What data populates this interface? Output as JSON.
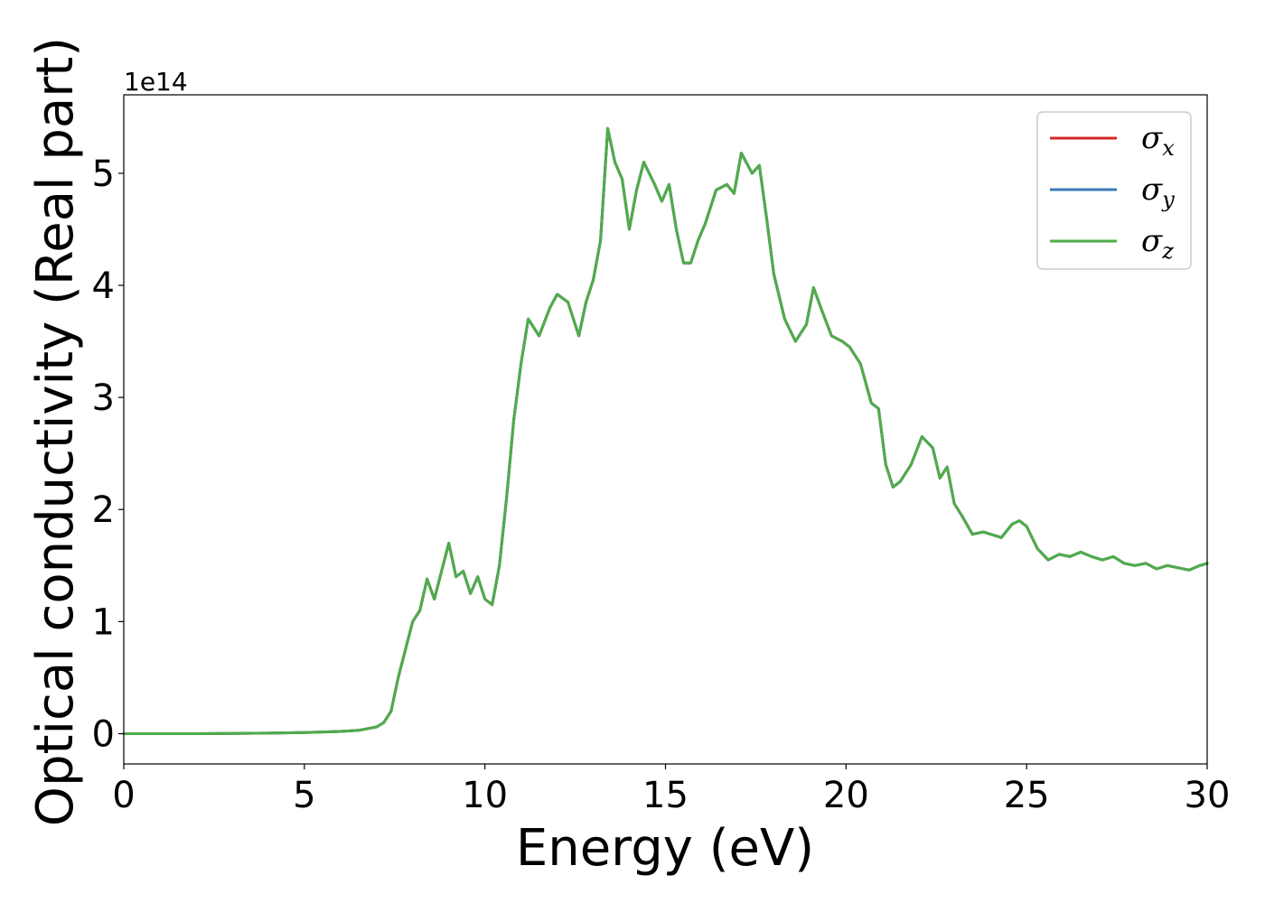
{
  "chart_data": {
    "type": "line",
    "xlabel": "Energy (eV)",
    "ylabel": "Optical conductivity (Real part)",
    "y_offset_label": "1e14",
    "xlim": [
      0,
      30
    ],
    "ylim": [
      -0.27,
      5.7
    ],
    "xticks": [
      "0",
      "5",
      "10",
      "15",
      "20",
      "25",
      "30"
    ],
    "yticks": [
      "0",
      "1",
      "2",
      "3",
      "4",
      "5"
    ],
    "grid": false,
    "legend_position": "top-right",
    "series": [
      {
        "name": "σx",
        "symbol": "σ",
        "subscript": "x",
        "color": "#d62728"
      },
      {
        "name": "σy",
        "symbol": "σ",
        "subscript": "y",
        "color": "#3a7bb6"
      },
      {
        "name": "σz",
        "symbol": "σ",
        "subscript": "z",
        "color": "#4fac4a"
      }
    ],
    "x": [
      0,
      2,
      4,
      5,
      6,
      6.5,
      7,
      7.2,
      7.4,
      7.6,
      7.8,
      8.0,
      8.2,
      8.4,
      8.6,
      8.8,
      9.0,
      9.2,
      9.4,
      9.6,
      9.8,
      10.0,
      10.2,
      10.4,
      10.6,
      10.8,
      11.0,
      11.2,
      11.5,
      11.8,
      12.0,
      12.3,
      12.6,
      12.8,
      13.0,
      13.2,
      13.4,
      13.6,
      13.8,
      14.0,
      14.2,
      14.4,
      14.7,
      14.9,
      15.1,
      15.3,
      15.5,
      15.7,
      15.9,
      16.1,
      16.4,
      16.7,
      16.9,
      17.1,
      17.4,
      17.6,
      17.8,
      18.0,
      18.3,
      18.6,
      18.9,
      19.1,
      19.3,
      19.6,
      19.9,
      20.1,
      20.4,
      20.7,
      20.9,
      21.1,
      21.3,
      21.5,
      21.8,
      22.1,
      22.4,
      22.6,
      22.8,
      23.0,
      23.2,
      23.5,
      23.8,
      24.0,
      24.3,
      24.6,
      24.8,
      25.0,
      25.3,
      25.6,
      25.9,
      26.2,
      26.5,
      26.8,
      27.1,
      27.4,
      27.7,
      28.0,
      28.3,
      28.6,
      28.9,
      29.2,
      29.5,
      29.8,
      30.0
    ],
    "y": [
      0,
      0,
      0.005,
      0.01,
      0.02,
      0.03,
      0.06,
      0.1,
      0.2,
      0.5,
      0.75,
      1.0,
      1.1,
      1.38,
      1.2,
      1.45,
      1.7,
      1.4,
      1.45,
      1.25,
      1.4,
      1.2,
      1.15,
      1.5,
      2.1,
      2.8,
      3.3,
      3.7,
      3.55,
      3.8,
      3.92,
      3.85,
      3.55,
      3.85,
      4.05,
      4.4,
      5.4,
      5.1,
      4.95,
      4.5,
      4.85,
      5.1,
      4.9,
      4.75,
      4.9,
      4.5,
      4.2,
      4.2,
      4.4,
      4.55,
      4.85,
      4.9,
      4.82,
      5.18,
      5.0,
      5.07,
      4.6,
      4.1,
      3.7,
      3.5,
      3.65,
      3.98,
      3.8,
      3.55,
      3.5,
      3.45,
      3.3,
      2.95,
      2.9,
      2.4,
      2.2,
      2.25,
      2.4,
      2.65,
      2.55,
      2.28,
      2.38,
      2.05,
      1.95,
      1.78,
      1.8,
      1.78,
      1.75,
      1.87,
      1.9,
      1.85,
      1.65,
      1.55,
      1.6,
      1.58,
      1.62,
      1.58,
      1.55,
      1.58,
      1.52,
      1.5,
      1.52,
      1.47,
      1.5,
      1.48,
      1.46,
      1.5,
      1.52
    ]
  }
}
